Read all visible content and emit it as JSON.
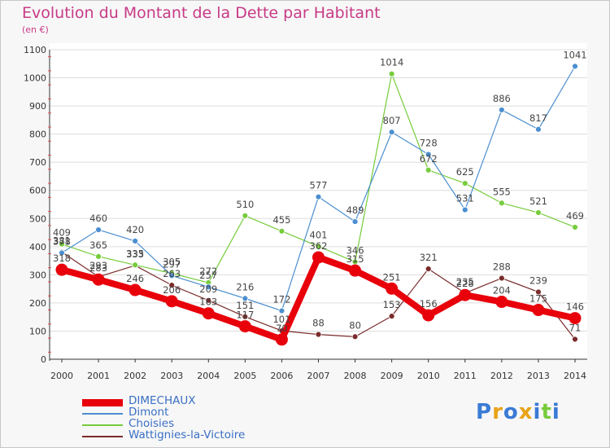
{
  "chart_data": {
    "type": "line",
    "title": "Evolution du Montant de la Dette par Habitant",
    "subtitle": "(en €)",
    "categories": [
      "2000",
      "2001",
      "2002",
      "2003",
      "2004",
      "2005",
      "2006",
      "2007",
      "2008",
      "2009",
      "2010",
      "2011",
      "2012",
      "2013",
      "2014"
    ],
    "y_ticks": [
      "0",
      "100",
      "200",
      "300",
      "400",
      "500",
      "600",
      "700",
      "800",
      "900",
      "1000",
      "1100"
    ],
    "ylim": [
      0,
      1100
    ],
    "grid": true,
    "legend_position": "bottom-left",
    "series": [
      {
        "name": "DIMECHAUX",
        "color": "#e8000b",
        "values": [
          318,
          283,
          246,
          206,
          163,
          117,
          70,
          362,
          315,
          251,
          156,
          228,
          204,
          175,
          146
        ],
        "labels": [
          "318",
          "283",
          "246",
          "206",
          "163",
          "117",
          "70",
          "362",
          "315",
          "251",
          "156",
          "228",
          "204",
          "175",
          "146"
        ]
      },
      {
        "name": "Dimont",
        "color": "#4b8fd0",
        "values": [
          378,
          460,
          420,
          297,
          257,
          216,
          172,
          577,
          489,
          807,
          728,
          531,
          886,
          817,
          1041
        ],
        "labels": [
          "378",
          "460",
          "420",
          "297",
          "257",
          "216",
          "172",
          "577",
          "489",
          "807",
          "728",
          "531",
          "886",
          "817",
          "1041"
        ]
      },
      {
        "name": "Choisies",
        "color": "#77cc3c",
        "values": [
          409,
          365,
          335,
          305,
          272,
          510,
          455,
          401,
          346,
          1014,
          672,
          625,
          555,
          521,
          469
        ],
        "labels": [
          "409",
          "365",
          "335",
          "305",
          "272",
          "510",
          "455",
          "401",
          "346",
          "1014",
          "672",
          "625",
          "555",
          "521",
          "469"
        ]
      },
      {
        "name": "Wattignies-la-Victoire",
        "color": "#7a2b2b",
        "values": [
          381,
          293,
          333,
          263,
          209,
          151,
          101,
          88,
          80,
          153,
          321,
          235,
          288,
          239,
          71
        ],
        "labels": [
          "381",
          "293",
          "333",
          "263",
          "209",
          "151",
          "101",
          "88",
          "80",
          "153",
          "321",
          "235",
          "288",
          "239",
          "71"
        ]
      }
    ],
    "draw_order": [
      3,
      2,
      1,
      0
    ]
  },
  "brand": {
    "letters": [
      "P",
      "r",
      "o",
      "x",
      "i",
      "t",
      "i"
    ],
    "colors": [
      "#3a7bd5",
      "#e8a317",
      "#3a7bd5",
      "#e8a317",
      "#3a7bd5",
      "#77cc3c",
      "#3a7bd5"
    ]
  }
}
